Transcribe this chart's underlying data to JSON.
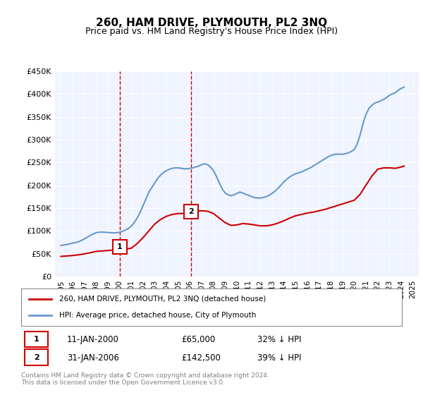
{
  "title": "260, HAM DRIVE, PLYMOUTH, PL2 3NQ",
  "subtitle": "Price paid vs. HM Land Registry's House Price Index (HPI)",
  "hpi_label": "HPI: Average price, detached house, City of Plymouth",
  "property_label": "260, HAM DRIVE, PLYMOUTH, PL2 3NQ (detached house)",
  "footer": "Contains HM Land Registry data © Crown copyright and database right 2024.\nThis data is licensed under the Open Government Licence v3.0.",
  "ylim": [
    0,
    450000
  ],
  "yticks": [
    0,
    50000,
    100000,
    150000,
    200000,
    250000,
    300000,
    350000,
    400000,
    450000
  ],
  "ytick_labels": [
    "£0",
    "£50K",
    "£100K",
    "£150K",
    "£200K",
    "£250K",
    "£300K",
    "£350K",
    "£400K",
    "£450K"
  ],
  "sale1_x": 2000.03,
  "sale1_y": 65000,
  "sale1_label": "1",
  "sale1_date": "11-JAN-2000",
  "sale1_price": "£65,000",
  "sale1_hpi": "32% ↓ HPI",
  "sale2_x": 2006.08,
  "sale2_y": 142500,
  "sale2_label": "2",
  "sale2_date": "31-JAN-2006",
  "sale2_price": "£142,500",
  "sale2_hpi": "39% ↓ HPI",
  "property_color": "#cc0000",
  "hpi_color": "#6699cc",
  "background_color": "#f0f4ff",
  "hpi_years": [
    1995,
    1995.25,
    1995.5,
    1995.75,
    1996,
    1996.25,
    1996.5,
    1996.75,
    1997,
    1997.25,
    1997.5,
    1997.75,
    1998,
    1998.25,
    1998.5,
    1998.75,
    1999,
    1999.25,
    1999.5,
    1999.75,
    2000,
    2000.25,
    2000.5,
    2000.75,
    2001,
    2001.25,
    2001.5,
    2001.75,
    2002,
    2002.25,
    2002.5,
    2002.75,
    2003,
    2003.25,
    2003.5,
    2003.75,
    2004,
    2004.25,
    2004.5,
    2004.75,
    2005,
    2005.25,
    2005.5,
    2005.75,
    2006,
    2006.25,
    2006.5,
    2006.75,
    2007,
    2007.25,
    2007.5,
    2007.75,
    2008,
    2008.25,
    2008.5,
    2008.75,
    2009,
    2009.25,
    2009.5,
    2009.75,
    2010,
    2010.25,
    2010.5,
    2010.75,
    2011,
    2011.25,
    2011.5,
    2011.75,
    2012,
    2012.25,
    2012.5,
    2012.75,
    2013,
    2013.25,
    2013.5,
    2013.75,
    2014,
    2014.25,
    2014.5,
    2014.75,
    2015,
    2015.25,
    2015.5,
    2015.75,
    2016,
    2016.25,
    2016.5,
    2016.75,
    2017,
    2017.25,
    2017.5,
    2017.75,
    2018,
    2018.25,
    2018.5,
    2018.75,
    2019,
    2019.25,
    2019.5,
    2019.75,
    2020,
    2020.25,
    2020.5,
    2020.75,
    2021,
    2021.25,
    2021.5,
    2021.75,
    2022,
    2022.25,
    2022.5,
    2022.75,
    2023,
    2023.25,
    2023.5,
    2023.75,
    2024,
    2024.25
  ],
  "hpi_values": [
    68000,
    69000,
    70000,
    71500,
    73000,
    74500,
    76000,
    79000,
    82000,
    86000,
    90000,
    93000,
    96000,
    97000,
    97500,
    97000,
    96500,
    96000,
    95500,
    96000,
    97000,
    99000,
    102000,
    105000,
    110000,
    118000,
    128000,
    140000,
    155000,
    170000,
    185000,
    195000,
    205000,
    215000,
    222000,
    228000,
    232000,
    235000,
    237000,
    238000,
    238000,
    237000,
    236000,
    236000,
    237000,
    238000,
    240000,
    242000,
    245000,
    247000,
    245000,
    240000,
    232000,
    220000,
    205000,
    192000,
    183000,
    179000,
    177000,
    179000,
    182000,
    185000,
    183000,
    180000,
    178000,
    175000,
    173000,
    172000,
    172000,
    173000,
    175000,
    178000,
    182000,
    187000,
    193000,
    200000,
    207000,
    213000,
    218000,
    222000,
    225000,
    227000,
    229000,
    232000,
    235000,
    238000,
    242000,
    246000,
    250000,
    254000,
    258000,
    262000,
    265000,
    267000,
    268000,
    268000,
    268000,
    269000,
    271000,
    274000,
    278000,
    290000,
    310000,
    335000,
    355000,
    368000,
    375000,
    380000,
    382000,
    385000,
    388000,
    392000,
    397000,
    400000,
    403000,
    408000,
    412000,
    415000
  ],
  "prop_years": [
    1995,
    1995.5,
    1996,
    1996.5,
    1997,
    1997.5,
    1998,
    1998.5,
    1999,
    1999.5,
    2000.03,
    2000.5,
    2001,
    2001.5,
    2002,
    2002.5,
    2003,
    2003.5,
    2004,
    2004.5,
    2005,
    2005.5,
    2006.08,
    2006.5,
    2007,
    2007.5,
    2008,
    2008.5,
    2009,
    2009.5,
    2010,
    2010.5,
    2011,
    2011.5,
    2012,
    2012.5,
    2013,
    2013.5,
    2014,
    2014.5,
    2015,
    2015.5,
    2016,
    2016.5,
    2017,
    2017.5,
    2018,
    2018.5,
    2019,
    2019.5,
    2020,
    2020.5,
    2021,
    2021.5,
    2022,
    2022.5,
    2023,
    2023.5,
    2024,
    2024.25
  ],
  "prop_values": [
    44000,
    45000,
    46000,
    47500,
    49500,
    52000,
    55000,
    56000,
    57000,
    58000,
    65000,
    60000,
    62000,
    72000,
    85000,
    100000,
    115000,
    125000,
    132000,
    136000,
    138000,
    138000,
    142500,
    143000,
    144000,
    143000,
    138000,
    128000,
    118000,
    112000,
    113000,
    116000,
    115000,
    113000,
    111000,
    111000,
    113000,
    117000,
    122000,
    128000,
    133000,
    136000,
    139000,
    141000,
    144000,
    147000,
    151000,
    155000,
    159000,
    163000,
    167000,
    180000,
    200000,
    220000,
    235000,
    238000,
    238000,
    237000,
    240000,
    242000
  ],
  "xlim": [
    1994.5,
    2025.5
  ],
  "xtick_years": [
    1995,
    1996,
    1997,
    1998,
    1999,
    2000,
    2001,
    2002,
    2003,
    2004,
    2005,
    2006,
    2007,
    2008,
    2009,
    2010,
    2011,
    2012,
    2013,
    2014,
    2015,
    2016,
    2017,
    2018,
    2019,
    2020,
    2021,
    2022,
    2023,
    2024,
    2025
  ]
}
